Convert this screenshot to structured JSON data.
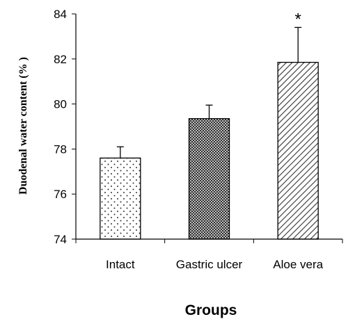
{
  "chart_data": {
    "type": "bar",
    "xlabel": "Groups",
    "ylabel": "Duodenal water content (% )",
    "ylim": [
      74,
      84
    ],
    "yticks": [
      74,
      76,
      78,
      80,
      82,
      84
    ],
    "categories": [
      "Intact",
      "Gastric ulcer",
      "Aloe vera"
    ],
    "values": [
      77.6,
      79.35,
      81.85
    ],
    "error_upper": [
      0.5,
      0.6,
      1.55
    ],
    "patterns": [
      "dots",
      "crosshatch",
      "diagonal-stripes"
    ],
    "annotations": [
      "",
      "",
      "*"
    ],
    "grid": false,
    "legend": "none"
  }
}
